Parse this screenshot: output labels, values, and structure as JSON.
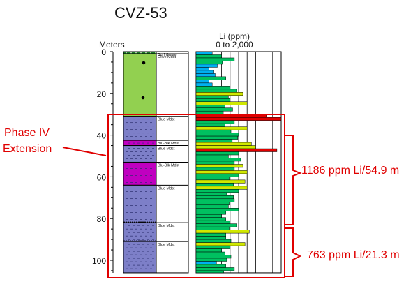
{
  "title": "CVZ-53",
  "depth_axis": {
    "label": "Meters",
    "ticks": [
      "0",
      "20",
      "40",
      "60",
      "80",
      "100"
    ]
  },
  "li_axis": {
    "label_line1": "Li (ppm)",
    "label_line2": "0 to 2,000"
  },
  "lithology": [
    {
      "label": "Surf Gravel",
      "top": 0,
      "bottom": 1,
      "color": "#1e7a2a"
    },
    {
      "label": "Olive Mdst",
      "top": 1,
      "bottom": 31,
      "color": "#92d050"
    },
    {
      "label": "Blue Mdst",
      "top": 31,
      "bottom": 42.5,
      "color": "#7d7fc8"
    },
    {
      "label": "Blu-Blk Mdst",
      "top": 42.5,
      "bottom": 45,
      "color": "#c000c0"
    },
    {
      "label": "Blue Mdst",
      "top": 45,
      "bottom": 53,
      "color": "#7d7fc8"
    },
    {
      "label": "Blu-Blk Mdst",
      "top": 53,
      "bottom": 64,
      "color": "#c000c0"
    },
    {
      "label": "Blue Mdst",
      "top": 64,
      "bottom": 82,
      "color": "#7d7fc8"
    },
    {
      "label": "Blue Mdst",
      "top": 82,
      "bottom": 91,
      "color": "#7d7fc8"
    },
    {
      "label": "Blue Mdst",
      "top": 91,
      "bottom": 106,
      "color": "#7d7fc8"
    }
  ],
  "chart_data": {
    "type": "bar",
    "orientation": "horizontal",
    "depth_range": [
      0,
      106
    ],
    "li_range": [
      0,
      2000
    ],
    "sample_interval_m": 1.5,
    "values": [
      380,
      600,
      900,
      620,
      500,
      300,
      420,
      450,
      700,
      300,
      380,
      800,
      950,
      1100,
      760,
      800,
      1200,
      680,
      860,
      640,
      1650,
      2000,
      900,
      680,
      1200,
      820,
      1000,
      980,
      850,
      1300,
      1400,
      1900,
      1000,
      760,
      1050,
      900,
      1100,
      900,
      1200,
      1000,
      780,
      1150,
      880,
      1200,
      1000,
      720,
      880,
      900,
      780,
      760,
      1000,
      700,
      600,
      700,
      800,
      950,
      780,
      1250,
      700,
      700,
      820,
      1150,
      800,
      600,
      680,
      820,
      720,
      480,
      700,
      900,
      650,
      700
    ]
  },
  "brackets": [
    {
      "label": "Phase IV",
      "label2": "Extension"
    },
    {
      "label": "1186 ppm Li/54.9 m"
    },
    {
      "label": "763 ppm Li/21.3 m"
    }
  ],
  "colors": {
    "annotation": "#e00000",
    "bar_low": "#00b0f0",
    "bar_mid": "#00c060",
    "bar_high": "#d0e800",
    "bar_peak": "#e00000"
  }
}
